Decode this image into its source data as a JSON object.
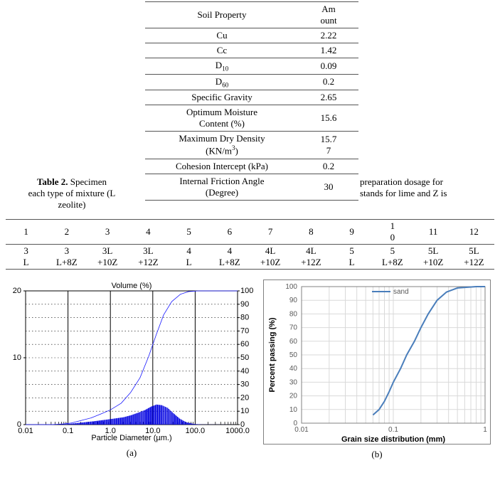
{
  "table2_left_text_html": "<b>Table 2.</b> Specimen<br>each type of mixture (L<br>zeolite)",
  "table2_right_text_html": "preparation dosage for<br>stands for lime and Z is",
  "prop_table": {
    "header": [
      "Soil Property",
      "Amount"
    ],
    "rows": [
      [
        "Cu",
        "2.22"
      ],
      [
        "Cc",
        "1.42"
      ],
      [
        "D<sub>10</sub>",
        "0.09"
      ],
      [
        "D<sub>60</sub>",
        "0.2"
      ],
      [
        "Specific Gravity",
        "2.65"
      ],
      [
        "Optimum  Moisture Content (%)",
        "15.6"
      ],
      [
        "Maximum Dry Density (KN/m<sup>3</sup>)",
        "15.77"
      ],
      [
        "Cohesion Intercept (kPa)",
        "0.2"
      ],
      [
        "Internal Friction Angle (Degree)",
        "30"
      ]
    ]
  },
  "dosage_table": {
    "row_numbers": [
      "1",
      "2",
      "3",
      "4",
      "5",
      "6",
      "7",
      "8",
      "9",
      "10",
      "11",
      "12"
    ],
    "row_codes": [
      "3L",
      "3L+8Z",
      "3L+10Z",
      "3L+12Z",
      "4L",
      "4L+8Z",
      "4L+10Z",
      "4L+12Z",
      "5L",
      "5L+8Z",
      "5L+10Z",
      "5L+12Z"
    ]
  },
  "chart_a": {
    "title": "Volume (%)",
    "xlabel": "Particle Diameter (µm.)",
    "left_ticks": [
      0,
      10,
      20
    ],
    "left_minor_count": 4,
    "right_ticks": [
      0,
      10,
      20,
      30,
      40,
      50,
      60,
      70,
      80,
      90,
      100
    ],
    "x_ticks": [
      "0.01",
      "0.1",
      "1.0",
      "10.0",
      "100.0",
      "1000.0"
    ],
    "plot_bg": "#ffffff",
    "grid_color": "#000000",
    "curve_color": "#1a1aff",
    "fill_color": "#0000e0",
    "curve_width": 0.8,
    "cumulative": [
      [
        0.01,
        0
      ],
      [
        0.04,
        0
      ],
      [
        0.08,
        0.5
      ],
      [
        0.12,
        1.2
      ],
      [
        0.2,
        3
      ],
      [
        0.35,
        5
      ],
      [
        0.6,
        8
      ],
      [
        1.0,
        11
      ],
      [
        1.8,
        16
      ],
      [
        3.0,
        24
      ],
      [
        5.0,
        35
      ],
      [
        8.0,
        51
      ],
      [
        12.0,
        67
      ],
      [
        18.0,
        82
      ],
      [
        28.0,
        92
      ],
      [
        45.0,
        97.5
      ],
      [
        70.0,
        99.5
      ],
      [
        120.0,
        100
      ],
      [
        1000.0,
        100
      ]
    ],
    "volume": [
      [
        0.01,
        0
      ],
      [
        0.06,
        0
      ],
      [
        0.1,
        0.1
      ],
      [
        0.2,
        0.3
      ],
      [
        0.4,
        0.5
      ],
      [
        0.7,
        0.7
      ],
      [
        1.2,
        0.9
      ],
      [
        2.0,
        1.1
      ],
      [
        3.0,
        1.4
      ],
      [
        4.5,
        1.8
      ],
      [
        6.5,
        2.2
      ],
      [
        9.0,
        2.7
      ],
      [
        12.0,
        3.0
      ],
      [
        16.0,
        2.9
      ],
      [
        22.0,
        2.5
      ],
      [
        30.0,
        1.7
      ],
      [
        42.0,
        0.9
      ],
      [
        60.0,
        0.35
      ],
      [
        90.0,
        0.1
      ],
      [
        140.0,
        0.02
      ],
      [
        1000.0,
        0
      ]
    ],
    "caption": "(a)"
  },
  "chart_b": {
    "legend_label": "sand",
    "xlabel": "Grain size distribution (mm)",
    "ylabel": "Percent passing  (%)",
    "x_ticks": [
      "0.01",
      "0.1",
      "1"
    ],
    "y_ticks": [
      0,
      10,
      20,
      30,
      40,
      50,
      60,
      70,
      80,
      90,
      100
    ],
    "border_color": "#808080",
    "grid_color": "#d9d9d9",
    "curve_color": "#4a7ebb",
    "curve_width": 2,
    "points": [
      [
        0.06,
        6
      ],
      [
        0.07,
        10
      ],
      [
        0.08,
        16
      ],
      [
        0.09,
        23
      ],
      [
        0.1,
        30
      ],
      [
        0.12,
        40
      ],
      [
        0.14,
        50
      ],
      [
        0.17,
        60
      ],
      [
        0.2,
        70
      ],
      [
        0.24,
        80
      ],
      [
        0.3,
        90
      ],
      [
        0.38,
        96
      ],
      [
        0.5,
        99
      ],
      [
        0.8,
        100
      ],
      [
        1.0,
        100
      ]
    ],
    "caption": "(b)"
  }
}
